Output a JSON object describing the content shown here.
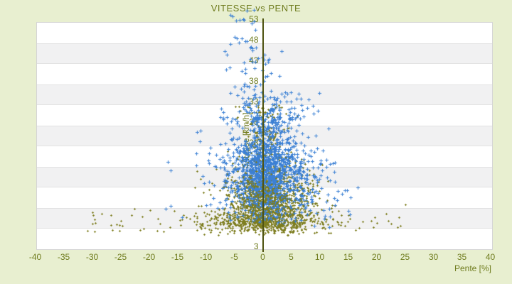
{
  "title": "VITESSE vs PENTE",
  "colors": {
    "background": "#e8efd0",
    "text_olive": "#6f7c1e",
    "axis_line": "#4d520f",
    "stripe_gray": "#f1f1f2",
    "stripe_white": "#ffffff",
    "series_blue": "#3c80d4",
    "series_olive": "#7d7d1f"
  },
  "chart_data": {
    "type": "scatter",
    "title": "VITESSE vs PENTE",
    "xlabel": "Pente [%]",
    "ylabel": "Vitesse [km/h]",
    "xlim": [
      -40,
      40
    ],
    "ylim": [
      -2,
      53
    ],
    "grid": "horizontal-bands",
    "legend": "none",
    "x_ticks": [
      -40,
      -35,
      -30,
      -25,
      -20,
      -15,
      -10,
      -5,
      0,
      5,
      10,
      15,
      20,
      25,
      30,
      35,
      40
    ],
    "y_tick_labels": [
      "53",
      "48",
      "43",
      "38",
      "33",
      "28",
      "23",
      "18",
      "13",
      "8",
      "3"
    ],
    "series": [
      {
        "name": "vitesse-olive",
        "marker": "small-diamond",
        "color": "#7d7d1f"
      },
      {
        "name": "vitesse-bleue",
        "marker": "plus-cross",
        "color": "#3c80d4"
      }
    ],
    "generator": {
      "seed": 7,
      "note": "clusters in data units: x = pente %, y = vitesse km/h; t:n = normal(a=mean,b=sd), t:u = uniform(a..b); s: 0 = olive series, 1 = blue series",
      "clusters": [
        {
          "s": 0,
          "n": 520,
          "x": {
            "t": "n",
            "a": 0,
            "b": 5.5
          },
          "y": {
            "t": "n",
            "a": 4.5,
            "b": 1.6
          },
          "cx": [
            -14,
            14
          ],
          "cy": [
            1.2,
            8
          ]
        },
        {
          "s": 0,
          "n": 28,
          "x": {
            "t": "u",
            "a": -31,
            "b": -13
          },
          "y": {
            "t": "u",
            "a": 2,
            "b": 8
          }
        },
        {
          "s": 0,
          "n": 22,
          "x": {
            "t": "u",
            "a": 12,
            "b": 26
          },
          "y": {
            "t": "u",
            "a": 2,
            "b": 9
          }
        },
        {
          "s": 0,
          "n": 650,
          "x": {
            "t": "n",
            "a": 0.5,
            "b": 3.8
          },
          "y": {
            "t": "n",
            "a": 11,
            "b": 4.5
          },
          "cx": [
            -13,
            13
          ],
          "cy": [
            3,
            26
          ]
        },
        {
          "s": 0,
          "n": 300,
          "x": {
            "t": "n",
            "a": 0.3,
            "b": 1.3
          },
          "y": {
            "t": "u",
            "a": 4,
            "b": 27
          },
          "cx": [
            -4,
            4
          ]
        },
        {
          "s": 0,
          "n": 60,
          "x": {
            "t": "n",
            "a": 0,
            "b": 2.5
          },
          "y": {
            "t": "u",
            "a": 26,
            "b": 33
          }
        },
        {
          "s": 0,
          "n": 90,
          "x": {
            "t": "n",
            "a": 6,
            "b": 3
          },
          "y": {
            "t": "n",
            "a": 10,
            "b": 4
          },
          "cx": [
            1,
            14
          ],
          "cy": [
            3,
            20
          ]
        },
        {
          "s": 1,
          "n": 950,
          "x": {
            "t": "n",
            "a": 1.2,
            "b": 3.6
          },
          "y": {
            "t": "n",
            "a": 16,
            "b": 5.5
          },
          "cx": [
            -10,
            13
          ],
          "cy": [
            4,
            30
          ]
        },
        {
          "s": 1,
          "n": 280,
          "x": {
            "t": "n",
            "a": 0.6,
            "b": 1.4
          },
          "y": {
            "t": "u",
            "a": 5,
            "b": 30
          }
        },
        {
          "s": 1,
          "n": 90,
          "x": {
            "t": "n",
            "a": -4,
            "b": 3.5
          },
          "y": {
            "t": "n",
            "a": 14,
            "b": 6
          },
          "cx": [
            -15,
            0
          ],
          "cy": [
            4,
            28
          ]
        },
        {
          "s": 1,
          "n": 130,
          "x": {
            "t": "n",
            "a": 1,
            "b": 4
          },
          "y": {
            "t": "u",
            "a": 28,
            "b": 36
          },
          "cx": [
            -8,
            10
          ]
        },
        {
          "s": 1,
          "n": 45,
          "x": {
            "t": "n",
            "a": -1.5,
            "b": 2.2
          },
          "y": {
            "t": "u",
            "a": 36,
            "b": 47
          },
          "cx": [
            -7,
            4
          ]
        },
        {
          "s": 1,
          "n": 18,
          "x": {
            "t": "n",
            "a": -3,
            "b": 1.5
          },
          "y": {
            "t": "u",
            "a": 47,
            "b": 56
          },
          "cx": [
            -6,
            0
          ]
        },
        {
          "s": 1,
          "n": 60,
          "x": {
            "t": "n",
            "a": 9,
            "b": 3
          },
          "y": {
            "t": "n",
            "a": 12,
            "b": 5
          },
          "cx": [
            4,
            16
          ],
          "cy": [
            3,
            24
          ]
        },
        {
          "s": 1,
          "n": 25,
          "x": {
            "t": "u",
            "a": -22,
            "b": 18
          },
          "y": {
            "t": "u",
            "a": 4,
            "b": 20
          }
        },
        {
          "s": 0,
          "n": 350,
          "x": {
            "t": "n",
            "a": 0.4,
            "b": 2.8
          },
          "y": {
            "t": "n",
            "a": 9,
            "b": 4
          },
          "cx": [
            -9,
            9
          ],
          "cy": [
            2,
            24
          ]
        },
        {
          "s": 0,
          "n": 8,
          "x": {
            "t": "u",
            "a": -30,
            "b": 26
          },
          "y": {
            "t": "u",
            "a": 1.5,
            "b": 6
          }
        }
      ]
    }
  }
}
